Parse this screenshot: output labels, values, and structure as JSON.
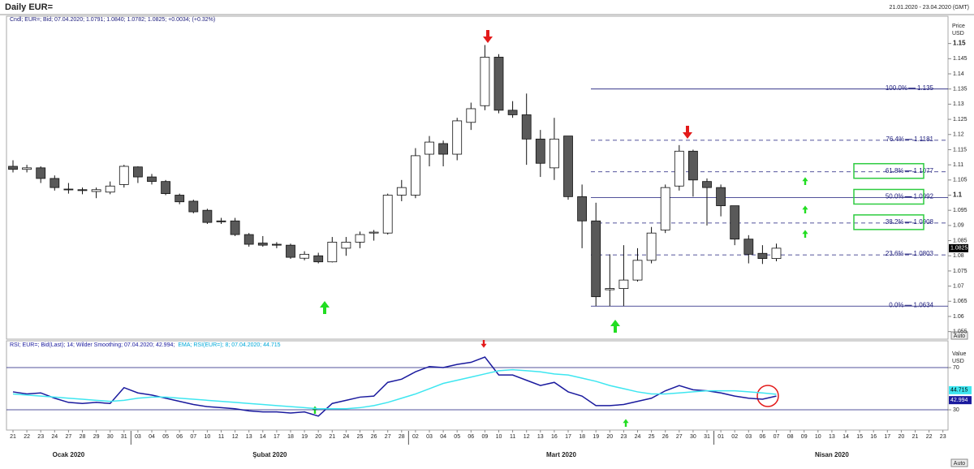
{
  "header": {
    "title": "Daily EUR=",
    "range": "21.01.2020 - 23.04.2020 (GMT)",
    "auto": "Auto"
  },
  "chart_data": [
    {
      "type": "candlestick",
      "info": "Cndl; EUR=; Bid; 07.04.2020; 1.0791; 1.0840; 1.0782; 1.0825; +0.0034; (+0.32%)",
      "y_label": [
        "Price",
        "USD"
      ],
      "categories": [
        "21",
        "22",
        "23",
        "24",
        "27",
        "28",
        "29",
        "30",
        "31",
        "03",
        "04",
        "05",
        "06",
        "07",
        "10",
        "11",
        "12",
        "13",
        "14",
        "17",
        "18",
        "19",
        "20",
        "21",
        "24",
        "25",
        "26",
        "27",
        "28",
        "02",
        "03",
        "04",
        "05",
        "06",
        "09",
        "10",
        "11",
        "12",
        "13",
        "16",
        "17",
        "18",
        "19",
        "20",
        "23",
        "24",
        "25",
        "26",
        "27",
        "30",
        "31",
        "01",
        "02",
        "03",
        "06",
        "07",
        "08",
        "09",
        "10",
        "13",
        "14",
        "15",
        "16",
        "17",
        "20",
        "21",
        "22",
        "23"
      ],
      "months": [
        "Ocak 2020",
        "Şubat 2020",
        "Mart 2020",
        "Nisan 2020"
      ],
      "open": [
        1.1095,
        1.1085,
        1.109,
        1.1055,
        1.102,
        1.1018,
        1.1012,
        1.101,
        1.1035,
        1.1093,
        1.106,
        1.1045,
        1.1,
        1.098,
        1.095,
        1.0915,
        1.0915,
        1.087,
        1.0842,
        1.0838,
        1.0835,
        1.0792,
        1.08,
        1.078,
        1.0825,
        1.0845,
        1.0875,
        1.0875,
        1.1,
        1.1,
        1.1135,
        1.117,
        1.1135,
        1.124,
        1.1295,
        1.1455,
        1.128,
        1.1265,
        1.1185,
        1.109,
        1.1195,
        1.0995,
        1.0915,
        1.0688,
        1.0692,
        1.072,
        1.0785,
        1.0885,
        1.103,
        1.1145,
        1.1045,
        1.1025,
        1.0965,
        1.0855,
        1.0808,
        1.0791,
        null,
        null,
        null,
        null,
        null,
        null,
        null,
        null,
        null,
        null,
        null,
        null
      ],
      "high": [
        1.1115,
        1.11,
        1.1095,
        1.1065,
        1.104,
        1.1025,
        1.1025,
        1.1045,
        1.11,
        1.1095,
        1.107,
        1.105,
        1.1005,
        1.0985,
        1.0955,
        1.0925,
        1.0925,
        1.0875,
        1.0865,
        1.0845,
        1.084,
        1.0815,
        1.081,
        1.0862,
        1.0862,
        1.088,
        1.0885,
        1.1005,
        1.105,
        1.1155,
        1.1195,
        1.118,
        1.1255,
        1.1305,
        1.1495,
        1.1465,
        1.131,
        1.1335,
        1.1215,
        1.1255,
        1.1195,
        1.1035,
        1.0975,
        1.0805,
        1.0835,
        1.0825,
        1.0895,
        1.1035,
        1.1165,
        1.115,
        1.1055,
        1.1035,
        1.0965,
        1.0868,
        1.0835,
        1.084,
        null,
        null,
        null,
        null,
        null,
        null,
        null,
        null,
        null,
        null,
        null,
        null
      ],
      "low": [
        1.1075,
        1.1075,
        1.104,
        1.1015,
        1.1005,
        1.1003,
        1.099,
        1.1003,
        1.1025,
        1.104,
        1.1035,
        1.1,
        1.097,
        1.094,
        1.0905,
        1.0905,
        1.0865,
        1.083,
        1.083,
        1.0825,
        1.079,
        1.0785,
        1.0775,
        1.0778,
        1.08,
        1.0825,
        1.085,
        1.087,
        1.098,
        1.099,
        1.1095,
        1.1095,
        1.1115,
        1.1215,
        1.128,
        1.127,
        1.1255,
        1.11,
        1.106,
        1.105,
        1.0985,
        1.0825,
        1.0634,
        1.0634,
        1.0634,
        1.0715,
        1.0775,
        1.0875,
        1.1015,
        1.0995,
        1.09,
        1.093,
        1.0835,
        1.0775,
        1.0773,
        1.0782,
        null,
        null,
        null,
        null,
        null,
        null,
        null,
        null,
        null,
        null,
        null,
        null
      ],
      "close": [
        1.1085,
        1.109,
        1.1055,
        1.1025,
        1.1018,
        1.1015,
        1.1018,
        1.103,
        1.1095,
        1.106,
        1.1045,
        1.1005,
        1.0978,
        1.0945,
        1.091,
        1.0912,
        1.087,
        1.0838,
        1.0835,
        1.0835,
        1.0795,
        1.0805,
        1.078,
        1.0845,
        1.0845,
        1.087,
        1.0878,
        1.1,
        1.1025,
        1.113,
        1.1175,
        1.1135,
        1.1245,
        1.1285,
        1.1455,
        1.128,
        1.1265,
        1.1185,
        1.1105,
        1.1185,
        1.0995,
        1.0915,
        1.0665,
        1.0692,
        1.072,
        1.0785,
        1.0875,
        1.1025,
        1.1145,
        1.105,
        1.1025,
        1.0965,
        1.0855,
        1.0805,
        1.0791,
        1.0825,
        null,
        null,
        null,
        null,
        null,
        null,
        null,
        null,
        null,
        null,
        null,
        null
      ],
      "up_color": "#ffffff",
      "down_color": "#595959",
      "ylim": [
        1.0525,
        1.159
      ],
      "yticks": [
        1.055,
        1.06,
        1.065,
        1.07,
        1.075,
        1.08,
        1.085,
        1.09,
        1.095,
        1.1,
        1.105,
        1.11,
        1.115,
        1.12,
        1.125,
        1.13,
        1.135,
        1.14,
        1.145,
        1.15
      ],
      "fibonacci": [
        {
          "label": "100.0%",
          "value": 1.135,
          "style": "solid",
          "boxed": false
        },
        {
          "label": "76.4%",
          "value": 1.1181,
          "style": "dashed",
          "boxed": false
        },
        {
          "label": "61.8%",
          "value": 1.1077,
          "style": "dashed",
          "boxed": true
        },
        {
          "label": "50.0%",
          "value": 1.0992,
          "style": "solid",
          "boxed": true
        },
        {
          "label": "38.2%",
          "value": 1.0908,
          "style": "dashed",
          "boxed": true
        },
        {
          "label": "23.6%",
          "value": 1.0803,
          "style": "dashed",
          "boxed": false
        },
        {
          "label": "0.0%",
          "value": 1.0634,
          "style": "solid",
          "boxed": false
        }
      ],
      "fib_color": "#1a1a7a"
    },
    {
      "type": "line",
      "y_label": [
        "Value",
        "USD"
      ],
      "series": [
        {
          "name": "RSI; EUR=; Bid(Last); 14; Wilder Smoothing; 07.04.2020; 42.994;",
          "color": "#1a1a9e",
          "values": [
            47,
            45,
            46,
            41,
            37,
            36,
            37,
            36,
            51,
            46,
            44,
            41,
            38,
            35,
            33,
            32,
            31,
            29,
            28,
            28,
            27,
            28,
            24,
            36,
            39,
            42,
            43,
            56,
            59,
            66,
            71,
            70,
            73,
            75,
            80,
            63,
            63,
            58,
            53,
            56,
            47,
            43,
            34,
            34,
            35,
            38,
            41,
            48,
            53,
            49,
            48,
            46,
            43,
            41,
            40,
            42.994,
            null,
            null,
            null,
            null,
            null,
            null,
            null,
            null,
            null,
            null,
            null,
            null
          ]
        },
        {
          "name": "EMA; RSI(EUR=); 8; 07.04.2020; 44.715",
          "color": "#3ee6f0",
          "values": [
            45,
            44,
            43,
            42,
            41,
            40,
            39,
            38,
            39,
            41,
            42,
            42,
            41,
            40,
            39,
            38,
            37,
            36,
            35,
            34,
            33,
            32,
            31,
            31,
            31,
            32,
            34,
            37,
            41,
            45,
            50,
            55,
            58,
            61,
            64,
            67,
            68,
            67,
            66,
            64,
            63,
            60,
            57,
            53,
            50,
            47,
            45,
            45,
            46,
            47,
            48,
            48,
            48,
            47,
            46,
            44.715,
            null,
            null,
            null,
            null,
            null,
            null,
            null,
            null,
            null,
            null,
            null,
            null
          ]
        }
      ],
      "ylim": [
        10.8,
        95.4
      ],
      "yticks": [
        30,
        70
      ],
      "levels": [
        70,
        30
      ]
    }
  ]
}
